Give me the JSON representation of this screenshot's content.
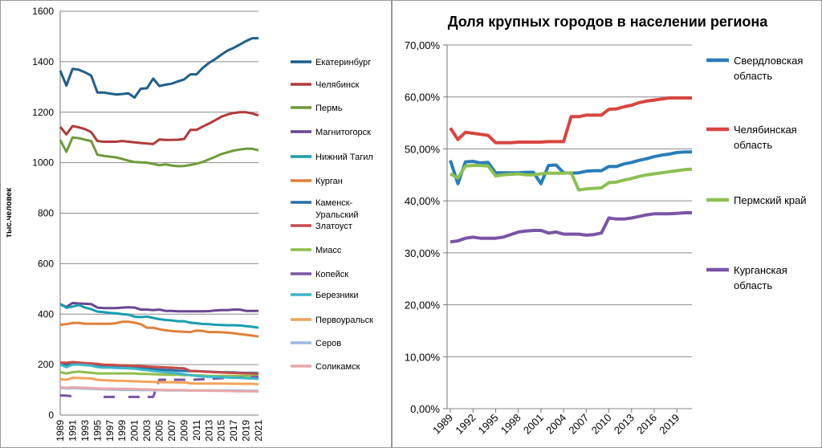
{
  "chart_data": [
    {
      "type": "line",
      "title": "",
      "ylabel": "тыс.человек",
      "xlabel": "",
      "ylim": [
        0,
        1600
      ],
      "yticks": [
        0,
        200,
        400,
        600,
        800,
        1000,
        1200,
        1400,
        1600
      ],
      "x": [
        1989,
        1990,
        1991,
        1992,
        1993,
        1994,
        1995,
        1996,
        1997,
        1998,
        1999,
        2000,
        2001,
        2002,
        2003,
        2004,
        2005,
        2006,
        2007,
        2008,
        2009,
        2010,
        2011,
        2012,
        2013,
        2014,
        2015,
        2016,
        2017,
        2018,
        2019,
        2020,
        2021
      ],
      "xtick_labels": [
        "1989",
        "1991",
        "1993",
        "1995",
        "1997",
        "1999",
        "2001",
        "2003",
        "2005",
        "2007",
        "2009",
        "2011",
        "2013",
        "2015",
        "2017",
        "2019",
        "2021"
      ],
      "series": [
        {
          "name": "Екатеринбург",
          "color": "#1f5f8b",
          "values": [
            1365,
            1305,
            1372,
            1368,
            1358,
            1345,
            1278,
            1278,
            1274,
            1270,
            1272,
            1275,
            1258,
            1293,
            1295,
            1333,
            1304,
            1309,
            1313,
            1322,
            1330,
            1350,
            1350,
            1375,
            1395,
            1410,
            1428,
            1444,
            1455,
            1468,
            1482,
            1493,
            1493
          ]
        },
        {
          "name": "Челябинск",
          "color": "#b03a3a",
          "values": [
            1142,
            1112,
            1145,
            1140,
            1133,
            1121,
            1086,
            1083,
            1083,
            1083,
            1086,
            1083,
            1081,
            1078,
            1076,
            1074,
            1092,
            1090,
            1090,
            1091,
            1094,
            1130,
            1130,
            1143,
            1155,
            1168,
            1182,
            1191,
            1197,
            1200,
            1200,
            1195,
            1187
          ]
        },
        {
          "name": "Пермь",
          "color": "#6f9a3a",
          "values": [
            1090,
            1043,
            1100,
            1097,
            1091,
            1086,
            1032,
            1027,
            1024,
            1021,
            1015,
            1008,
            1003,
            1001,
            1000,
            995,
            990,
            993,
            989,
            986,
            987,
            991,
            996,
            1003,
            1013,
            1023,
            1034,
            1041,
            1048,
            1052,
            1055,
            1055,
            1049
          ]
        },
        {
          "name": "Магнитогорск",
          "color": "#6a4593",
          "values": [
            440,
            428,
            444,
            442,
            441,
            440,
            426,
            424,
            424,
            424,
            426,
            427,
            426,
            418,
            418,
            416,
            418,
            413,
            413,
            411,
            411,
            411,
            411,
            411,
            412,
            414,
            416,
            416,
            418,
            418,
            413,
            413,
            413
          ]
        },
        {
          "name": "Нижний Тагил",
          "color": "#1a9db0",
          "values": [
            440,
            425,
            430,
            436,
            426,
            420,
            410,
            408,
            405,
            403,
            400,
            398,
            390,
            388,
            390,
            385,
            380,
            377,
            375,
            372,
            372,
            366,
            364,
            361,
            360,
            358,
            357,
            356,
            356,
            355,
            352,
            350,
            346
          ]
        },
        {
          "name": "Курган",
          "color": "#e0803a",
          "values": [
            358,
            360,
            365,
            365,
            362,
            362,
            362,
            362,
            362,
            364,
            370,
            370,
            366,
            360,
            346,
            346,
            340,
            336,
            333,
            331,
            330,
            329,
            335,
            333,
            329,
            329,
            328,
            327,
            324,
            321,
            318,
            315,
            311
          ]
        },
        {
          "name": "Каменск-Уральский",
          "color": "#2a6fa8",
          "values": [
            205,
            198,
            207,
            205,
            200,
            198,
            195,
            192,
            190,
            190,
            190,
            190,
            188,
            186,
            185,
            182,
            180,
            179,
            178,
            176,
            175,
            174,
            174,
            173,
            172,
            171,
            170,
            170,
            169,
            168,
            167,
            167,
            166
          ]
        },
        {
          "name": "Златоуст",
          "color": "#c94a4a",
          "values": [
            208,
            207,
            210,
            208,
            206,
            205,
            203,
            200,
            199,
            198,
            197,
            196,
            195,
            194,
            192,
            191,
            190,
            189,
            188,
            186,
            185,
            175,
            174,
            172,
            171,
            170,
            169,
            168,
            167,
            166,
            165,
            164,
            163
          ]
        },
        {
          "name": "Миасс",
          "color": "#8fbd4e",
          "values": [
            170,
            165,
            170,
            172,
            170,
            168,
            165,
            165,
            165,
            165,
            165,
            165,
            165,
            163,
            163,
            162,
            161,
            160,
            160,
            160,
            158,
            158,
            157,
            157,
            155,
            155,
            155,
            155,
            155,
            155,
            155,
            155,
            155
          ]
        },
        {
          "name": "Копейск",
          "color": "#7a55a5",
          "values": [
            78,
            77,
            74,
            80,
            null,
            null,
            null,
            72,
            72,
            72,
            null,
            72,
            72,
            72,
            72,
            72,
            140,
            140,
            140,
            140,
            140,
            140,
            141,
            142,
            143,
            145,
            146,
            147,
            148,
            148,
            149,
            150,
            150
          ]
        },
        {
          "name": "Березники",
          "color": "#3cb7c8",
          "values": [
            200,
            190,
            200,
            200,
            198,
            196,
            190,
            188,
            188,
            187,
            186,
            185,
            184,
            180,
            178,
            175,
            172,
            170,
            168,
            165,
            162,
            158,
            155,
            153,
            152,
            151,
            150,
            149,
            148,
            147,
            146,
            145,
            143
          ]
        },
        {
          "name": "Первоуральск",
          "color": "#f2a35a",
          "values": [
            142,
            140,
            148,
            147,
            146,
            145,
            140,
            138,
            137,
            136,
            136,
            135,
            134,
            133,
            132,
            131,
            130,
            130,
            130,
            129,
            129,
            126,
            125,
            125,
            125,
            125,
            125,
            125,
            124,
            124,
            124,
            124,
            122
          ]
        },
        {
          "name": "Серов",
          "color": "#9fb8d8",
          "values": [
            108,
            106,
            107,
            106,
            105,
            104,
            103,
            102,
            101,
            101,
            100,
            100,
            100,
            99,
            99,
            99,
            99,
            98,
            98,
            98,
            98,
            98,
            98,
            98,
            98,
            97,
            97,
            97,
            97,
            97,
            96,
            96,
            96
          ]
        },
        {
          "name": "Соликамск",
          "color": "#e8a8a8",
          "values": [
            110,
            108,
            110,
            109,
            108,
            107,
            106,
            105,
            105,
            104,
            104,
            104,
            103,
            102,
            102,
            101,
            100,
            100,
            99,
            99,
            99,
            97,
            97,
            97,
            96,
            96,
            96,
            95,
            95,
            94,
            94,
            94,
            93
          ]
        }
      ]
    },
    {
      "type": "line",
      "title": "Доля крупных городов в населении региона",
      "xlabel": "",
      "ylabel": "",
      "ylim": [
        0,
        70
      ],
      "yticks_labels": [
        "0,00%",
        "10,00%",
        "20,00%",
        "30,00%",
        "40,00%",
        "50,00%",
        "60,00%",
        "70,00%"
      ],
      "x": [
        1989,
        1990,
        1991,
        1992,
        1993,
        1994,
        1995,
        1996,
        1997,
        1998,
        1999,
        2000,
        2001,
        2002,
        2003,
        2004,
        2005,
        2006,
        2007,
        2008,
        2009,
        2010,
        2011,
        2012,
        2013,
        2014,
        2015,
        2016,
        2017,
        2018,
        2019,
        2020,
        2021
      ],
      "xtick_labels": [
        "1989",
        "1992",
        "1995",
        "1998",
        "2001",
        "2004",
        "2007",
        "2010",
        "2013",
        "2016",
        "2019"
      ],
      "series": [
        {
          "name": "Свердловская область",
          "legend_lines": [
            "Свердловская",
            "область"
          ],
          "color": "#2a7db8",
          "values": [
            47.8,
            43.3,
            47.5,
            47.6,
            47.3,
            47.4,
            45.4,
            45.4,
            45.4,
            45.4,
            45.5,
            45.5,
            43.3,
            46.8,
            46.9,
            45.4,
            45.3,
            45.4,
            45.7,
            45.8,
            45.8,
            46.6,
            46.6,
            47.1,
            47.4,
            47.8,
            48.1,
            48.5,
            48.8,
            49.0,
            49.3,
            49.4,
            49.4
          ]
        },
        {
          "name": "Челябинская область",
          "legend_lines": [
            "Челябинская",
            "область"
          ],
          "color": "#d9453f",
          "values": [
            54.0,
            51.8,
            53.2,
            53.0,
            52.8,
            52.6,
            51.2,
            51.2,
            51.2,
            51.3,
            51.3,
            51.3,
            51.3,
            51.4,
            51.4,
            51.4,
            56.2,
            56.2,
            56.5,
            56.5,
            56.5,
            57.6,
            57.7,
            58.1,
            58.4,
            58.9,
            59.2,
            59.4,
            59.6,
            59.8,
            59.8,
            59.8,
            59.8
          ]
        },
        {
          "name": "Пермский край",
          "legend_lines": [
            "Пермский край"
          ],
          "color": "#8cc152",
          "values": [
            45.2,
            44.4,
            46.7,
            46.8,
            46.8,
            46.7,
            44.8,
            45.0,
            45.1,
            45.2,
            45.0,
            45.0,
            45.2,
            45.3,
            45.3,
            45.3,
            45.4,
            42.1,
            42.3,
            42.4,
            42.5,
            43.5,
            43.6,
            44.0,
            44.3,
            44.7,
            45.0,
            45.2,
            45.4,
            45.6,
            45.8,
            46.0,
            46.1
          ]
        },
        {
          "name": "Курганская область",
          "legend_lines": [
            "Курганская",
            "область"
          ],
          "color": "#7a55a5",
          "values": [
            32.1,
            32.3,
            32.8,
            33.0,
            32.8,
            32.8,
            32.8,
            33.0,
            33.5,
            34.0,
            34.2,
            34.3,
            34.3,
            33.8,
            34.0,
            33.6,
            33.6,
            33.6,
            33.4,
            33.5,
            33.8,
            36.7,
            36.5,
            36.5,
            36.7,
            37.0,
            37.3,
            37.5,
            37.5,
            37.5,
            37.6,
            37.7,
            37.7
          ]
        }
      ]
    }
  ]
}
